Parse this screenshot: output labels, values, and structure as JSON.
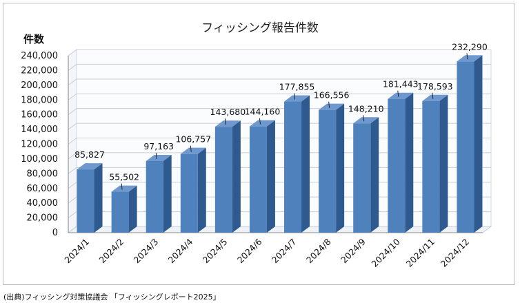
{
  "source_note": "(出典)フィッシング対策協議会 「フィッシングレポート2025」",
  "colors": {
    "bar_front": "#4f81bd",
    "bar_side": "#2f5a8f",
    "bar_top": "#6f98cf",
    "grid": "#c8cfd8",
    "wall": "#f3f5f8"
  },
  "chart_data": {
    "type": "bar",
    "title": "フィッシング報告件数",
    "ylabel": "件数",
    "xlabel": "",
    "categories": [
      "2024/1",
      "2024/2",
      "2024/3",
      "2024/4",
      "2024/5",
      "2024/6",
      "2024/7",
      "2024/8",
      "2024/9",
      "2024/10",
      "2024/11",
      "2024/12"
    ],
    "values": [
      85827,
      55502,
      97163,
      106757,
      143680,
      144160,
      177855,
      166556,
      148210,
      181443,
      178593,
      232290
    ],
    "value_labels": [
      "85,827",
      "55,502",
      "97,163",
      "106,757",
      "143,680",
      "144,160",
      "177,855",
      "166,556",
      "148,210",
      "181,443",
      "178,593",
      "232,290"
    ],
    "yticks": [
      "0",
      "20,000",
      "40,000",
      "60,000",
      "80,000",
      "100,000",
      "120,000",
      "140,000",
      "160,000",
      "180,000",
      "200,000",
      "220,000",
      "240,000"
    ],
    "ylim": [
      0,
      240000
    ],
    "grid": true,
    "legend": "none",
    "style": "3d-column"
  }
}
